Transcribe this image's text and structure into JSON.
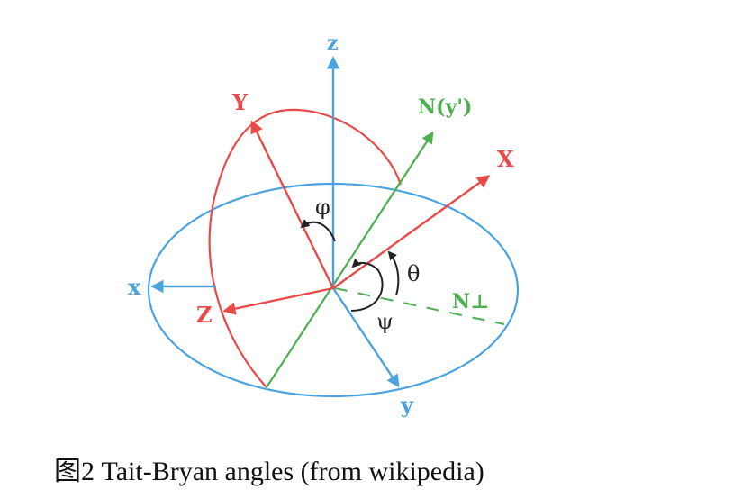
{
  "diagram": {
    "labels": {
      "z": "z",
      "x": "x",
      "y": "y",
      "X": "X",
      "Y": "Y",
      "Z": "Z",
      "N": "N(y')",
      "N_perp": "N⊥",
      "phi": "φ",
      "theta": "θ",
      "psi": "ψ"
    },
    "colors": {
      "fixed_frame": "#4aa3df",
      "rotated_frame": "#e84a4a",
      "node_line": "#4caf50",
      "text_dark": "#222222"
    }
  },
  "caption": "图2 Tait-Bryan angles (from wikipedia)"
}
